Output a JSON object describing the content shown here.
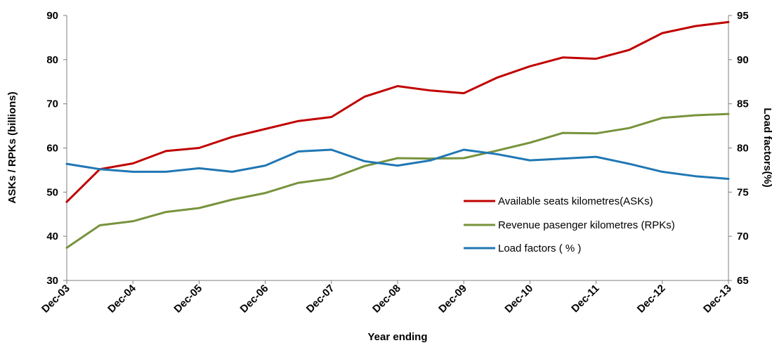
{
  "chart_data": {
    "type": "line",
    "title": "",
    "xlabel": "Year ending",
    "ylabel": "ASKs / RPKs (billions)",
    "y2label": "Load factors(%)",
    "x_ticks": [
      "Dec-03",
      "Dec-04",
      "Dec-05",
      "Dec-06",
      "Dec-07",
      "Dec-08",
      "Dec-09",
      "Dec-10",
      "Dec-11",
      "Dec-12",
      "Dec-13"
    ],
    "ylim": [
      30,
      90
    ],
    "y_ticks": [
      30,
      40,
      50,
      60,
      70,
      80,
      90
    ],
    "y2lim": [
      65,
      95
    ],
    "y2_ticks": [
      65,
      70,
      75,
      80,
      85,
      90,
      95
    ],
    "grid": false,
    "legend_position": "lower-right",
    "series": [
      {
        "name": "Available seats kilometres(ASKs)",
        "axis": "left",
        "color": "#c00000",
        "x": [
          "Dec-03",
          "Jun-04",
          "Dec-04",
          "Jun-05",
          "Dec-05",
          "Jun-06",
          "Dec-06",
          "Jun-07",
          "Dec-07",
          "Jun-08",
          "Dec-08",
          "Jun-09",
          "Dec-09",
          "Jun-10",
          "Dec-10",
          "Jun-11",
          "Dec-11",
          "Jun-12",
          "Dec-12",
          "Jun-13",
          "Dec-13"
        ],
        "values": [
          47.8,
          55.2,
          56.5,
          59.3,
          60.0,
          62.5,
          64.3,
          66.1,
          67.0,
          71.6,
          74.0,
          73.0,
          72.4,
          75.9,
          78.5,
          80.5,
          80.2,
          82.2,
          86.0,
          87.6,
          88.5
        ]
      },
      {
        "name": "Revenue pasenger kilometres (RPKs)",
        "axis": "left",
        "color": "#77933c",
        "x": [
          "Dec-03",
          "Jun-04",
          "Dec-04",
          "Jun-05",
          "Dec-05",
          "Jun-06",
          "Dec-06",
          "Jun-07",
          "Dec-07",
          "Jun-08",
          "Dec-08",
          "Jun-09",
          "Dec-09",
          "Jun-10",
          "Dec-10",
          "Jun-11",
          "Dec-11",
          "Jun-12",
          "Dec-12",
          "Jun-13",
          "Dec-13"
        ],
        "values": [
          37.4,
          42.5,
          43.4,
          45.5,
          46.4,
          48.3,
          49.8,
          52.1,
          53.1,
          55.9,
          57.7,
          57.6,
          57.7,
          59.4,
          61.2,
          63.4,
          63.3,
          64.5,
          66.8,
          67.4,
          67.7
        ]
      },
      {
        "name": "Load factors ( % )",
        "axis": "right",
        "color": "#1f77b4",
        "x": [
          "Dec-03",
          "Jun-04",
          "Dec-04",
          "Jun-05",
          "Dec-05",
          "Jun-06",
          "Dec-06",
          "Jun-07",
          "Dec-07",
          "Jun-08",
          "Dec-08",
          "Jun-09",
          "Dec-09",
          "Jun-10",
          "Dec-10",
          "Jun-11",
          "Dec-11",
          "Jun-12",
          "Dec-12",
          "Jun-13",
          "Dec-13"
        ],
        "values": [
          78.2,
          77.6,
          77.3,
          77.3,
          77.7,
          77.3,
          78.0,
          79.6,
          79.8,
          78.5,
          78.0,
          78.6,
          79.8,
          79.3,
          78.6,
          78.8,
          79.0,
          78.2,
          77.3,
          76.8,
          76.5
        ]
      }
    ]
  }
}
